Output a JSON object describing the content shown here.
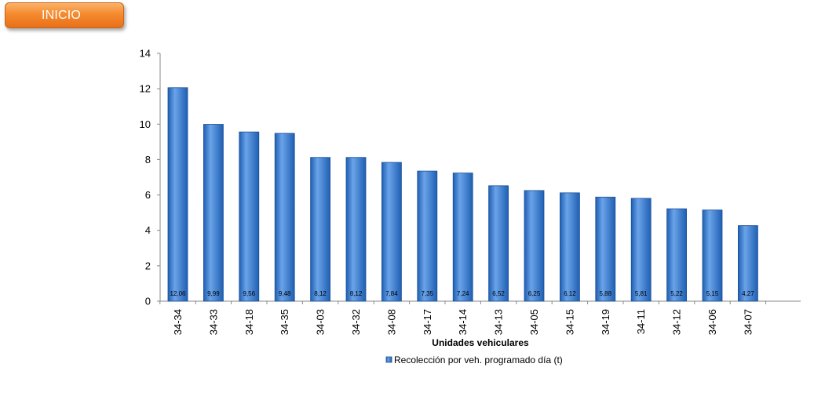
{
  "nav": {
    "inicio_label": "INICIO"
  },
  "colors": {
    "bar_light": "#6aa3e8",
    "bar_dark": "#1f5fb3",
    "bar_stroke": "#1a4f96",
    "axis": "#888888",
    "button": "#f58a2e"
  },
  "chart_data": {
    "type": "bar",
    "title": "",
    "xlabel": "Unidades vehiculares",
    "ylabel": "",
    "ylim": [
      0,
      14
    ],
    "yticks": [
      0,
      2,
      4,
      6,
      8,
      10,
      12,
      14
    ],
    "grid": false,
    "legend_position": "bottom",
    "categories": [
      "34-34",
      "34-33",
      "34-18",
      "34-35",
      "34-03",
      "34-32",
      "34-08",
      "34-17",
      "34-14",
      "34-13",
      "34-05",
      "34-15",
      "34-19",
      "34-11",
      "34-12",
      "34-06",
      "34-07"
    ],
    "series": [
      {
        "name": "Recolección por veh. programado día (t)",
        "values": [
          12.06,
          9.99,
          9.56,
          9.48,
          8.12,
          8.12,
          7.84,
          7.35,
          7.24,
          6.52,
          6.25,
          6.12,
          5.88,
          5.81,
          5.22,
          5.15,
          4.27
        ],
        "data_labels": [
          "12,06",
          "9,99",
          "9,56",
          "9,48",
          "8,12",
          "8,12",
          "7,84",
          "7,35",
          "7,24",
          "6,52",
          "6,25",
          "6,12",
          "5,88",
          "5,81",
          "5,22",
          "5,15",
          "4,27"
        ]
      }
    ]
  }
}
